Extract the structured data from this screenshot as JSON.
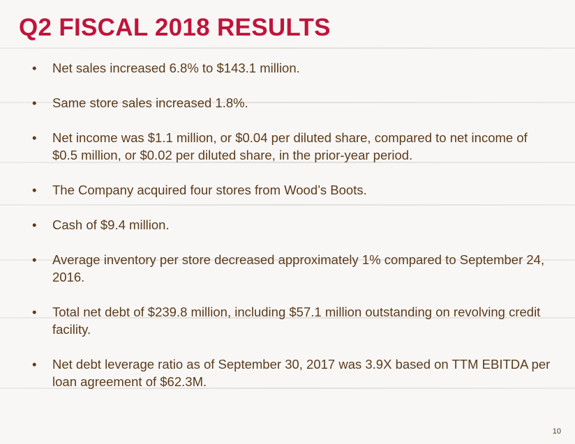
{
  "slide": {
    "title": "Q2 FISCAL 2018 RESULTS",
    "bullets": [
      "Net sales increased 6.8% to $143.1 million.",
      "Same store sales increased 1.8%.",
      "Net income was $1.1 million, or $0.04 per diluted share, compared to net income of $0.5 million, or $0.02 per diluted share, in the prior-year period.",
      "The Company acquired four stores from Wood’s Boots.",
      "Cash of $9.4 million.",
      "Average inventory per store decreased approximately 1% compared to September 24, 2016.",
      "Total net debt of $239.8 million, including $57.1 million outstanding on revolving credit facility.",
      "Net debt leverage ratio as of September 30, 2017 was 3.9X based on TTM EBITDA per loan agreement of $62.3M."
    ],
    "bullet_symbol": "•",
    "page_number": "10"
  },
  "colors": {
    "title": "#c0143c",
    "text": "#5c3b1c",
    "background": "#f8f7f5"
  }
}
